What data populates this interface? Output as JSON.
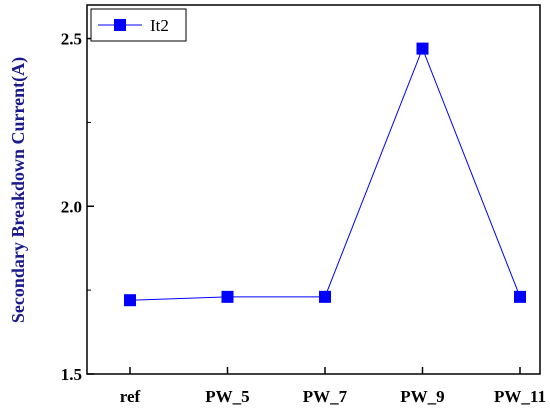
{
  "chart_data": {
    "type": "line",
    "categories": [
      "ref",
      "PW_5",
      "PW_7",
      "PW_9",
      "PW_11"
    ],
    "series": [
      {
        "name": "It2",
        "values": [
          1.72,
          1.73,
          1.73,
          2.47,
          1.73
        ],
        "color": "#0000ff",
        "marker": "square"
      }
    ],
    "ylabel": "Secondary Breakdown Current(A)",
    "ylabel_color": "#1a1a8c",
    "ylim": [
      1.5,
      2.6
    ],
    "yticks": [
      1.5,
      2.0,
      2.5
    ],
    "ytick_labels": [
      "1.5",
      "2.0",
      "2.5"
    ],
    "grid": false,
    "legend": "top-left"
  }
}
